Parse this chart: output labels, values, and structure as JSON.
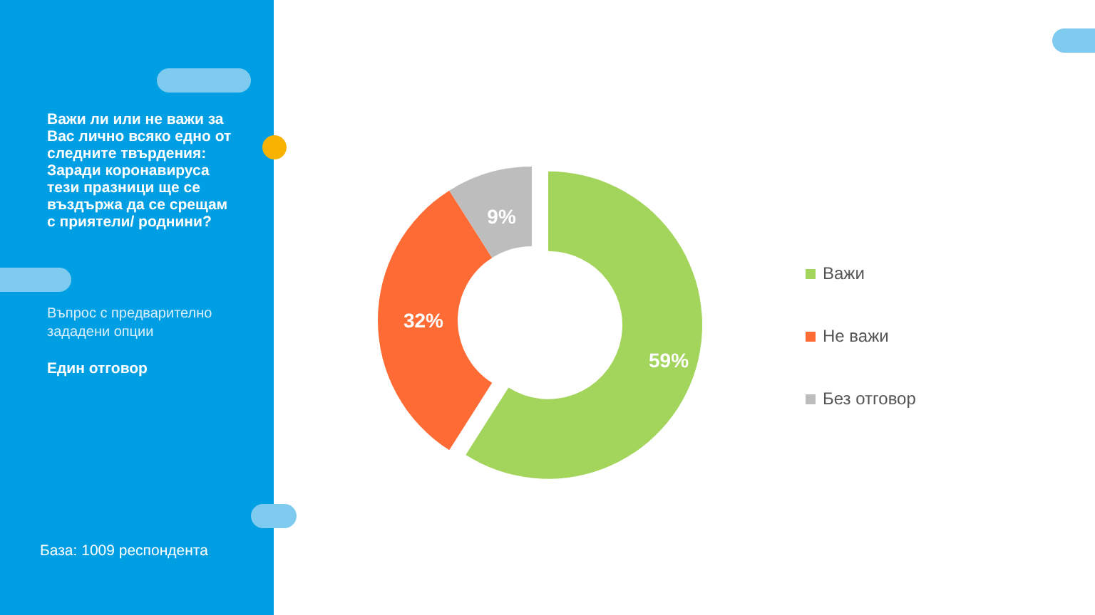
{
  "chart_data": {
    "type": "donut",
    "title": "Важи ли или не важи за Вас лично всяко едно от следните твърдения: Заради коронавируса тези празници ще се въздържа да се срещам с приятели/ роднини?",
    "subtitle": "Въпрос с предварително зададени опции",
    "annotations": [
      "Един отговор",
      "База: 1009 респондента"
    ],
    "categories": [
      "Важи",
      "Не важи",
      "Без отговор"
    ],
    "values": [
      59,
      32,
      9
    ],
    "colors": [
      "#a3d45c",
      "#ff6b35",
      "#bdbdbd"
    ],
    "value_labels": [
      "59%",
      "32%",
      "9%"
    ],
    "legend": "right"
  }
}
